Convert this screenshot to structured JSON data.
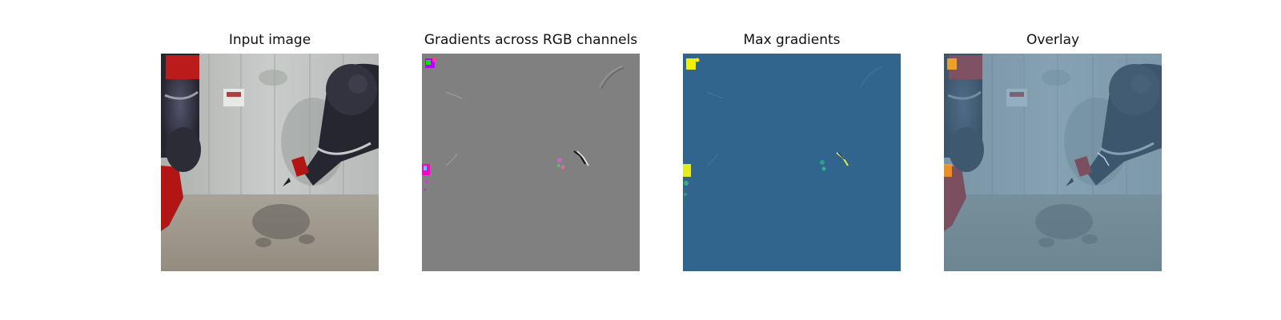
{
  "figure": {
    "panels": [
      {
        "title": "Input image",
        "kind": "input"
      },
      {
        "title": "Gradients across RGB channels",
        "kind": "rgb-gradients"
      },
      {
        "title": "Max gradients",
        "kind": "max-gradients"
      },
      {
        "title": "Overlay",
        "kind": "overlay"
      }
    ]
  },
  "colors": {
    "background": "#ffffff",
    "gradient_gray": "#808080",
    "max_gradient_blue": "#31658d",
    "overlay_tint": "#5a86a2",
    "highlight_yellow": "#f0f000",
    "highlight_magenta": "#ff00c8"
  }
}
